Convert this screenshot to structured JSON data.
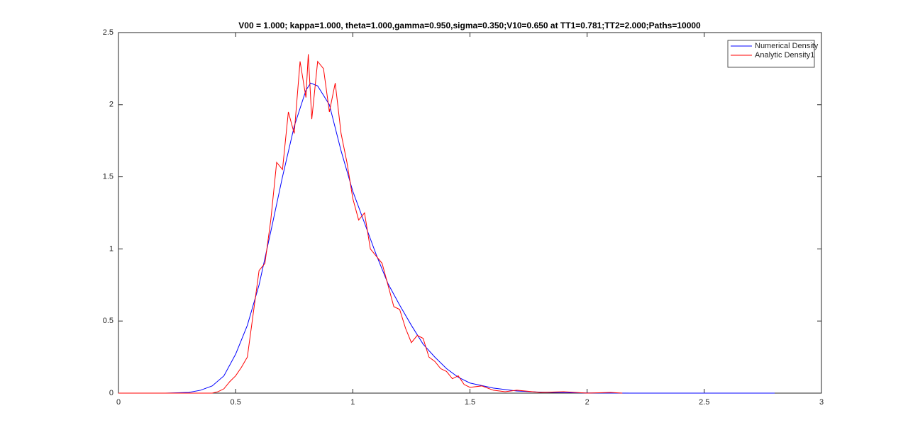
{
  "chart_data": {
    "type": "line",
    "title": "V00 = 1.000; kappa=1.000, theta=1.000,gamma=0.950,sigma=0.350;V10=0.650 at TT1=0.781;TT2=2.000;Paths=10000",
    "xlim": [
      0,
      3
    ],
    "xticks": [
      0,
      0.5,
      1,
      1.5,
      2,
      2.5,
      3
    ],
    "ylim": [
      0,
      2.5
    ],
    "yticks": [
      0,
      0.5,
      1,
      1.5,
      2,
      2.5
    ],
    "legend": "upper-right",
    "series": [
      {
        "name": "Numerical Density",
        "color": "#0000ff",
        "x": [
          0,
          0.1,
          0.2,
          0.3,
          0.35,
          0.4,
          0.45,
          0.5,
          0.55,
          0.6,
          0.65,
          0.7,
          0.75,
          0.8,
          0.82,
          0.85,
          0.9,
          0.95,
          1.0,
          1.05,
          1.1,
          1.15,
          1.2,
          1.25,
          1.3,
          1.35,
          1.4,
          1.45,
          1.5,
          1.6,
          1.7,
          1.8,
          1.9,
          2.0,
          2.2,
          2.5,
          2.8
        ],
        "values": [
          0,
          0,
          0,
          0.005,
          0.02,
          0.05,
          0.12,
          0.27,
          0.47,
          0.75,
          1.12,
          1.5,
          1.85,
          2.1,
          2.15,
          2.13,
          2.0,
          1.68,
          1.4,
          1.18,
          0.96,
          0.76,
          0.61,
          0.47,
          0.34,
          0.25,
          0.17,
          0.11,
          0.07,
          0.035,
          0.015,
          0.007,
          0.003,
          0.001,
          0,
          0,
          0
        ]
      },
      {
        "name": "Analytic Density1",
        "color": "#ff0000",
        "x": [
          0,
          0.4,
          0.425,
          0.45,
          0.475,
          0.5,
          0.525,
          0.55,
          0.575,
          0.6,
          0.625,
          0.65,
          0.675,
          0.7,
          0.725,
          0.75,
          0.775,
          0.8,
          0.81,
          0.825,
          0.85,
          0.875,
          0.9,
          0.925,
          0.95,
          0.975,
          1.0,
          1.025,
          1.05,
          1.075,
          1.1,
          1.125,
          1.15,
          1.175,
          1.2,
          1.225,
          1.25,
          1.275,
          1.3,
          1.325,
          1.35,
          1.375,
          1.4,
          1.425,
          1.45,
          1.475,
          1.5,
          1.55,
          1.6,
          1.65,
          1.7,
          1.8,
          1.9,
          2.0,
          2.1,
          2.15
        ],
        "values": [
          0,
          0,
          0.01,
          0.03,
          0.08,
          0.12,
          0.18,
          0.25,
          0.55,
          0.85,
          0.9,
          1.2,
          1.6,
          1.55,
          1.95,
          1.8,
          2.3,
          2.05,
          2.35,
          1.9,
          2.3,
          2.25,
          1.95,
          2.15,
          1.8,
          1.6,
          1.35,
          1.2,
          1.25,
          1.0,
          0.95,
          0.9,
          0.75,
          0.6,
          0.58,
          0.45,
          0.35,
          0.4,
          0.38,
          0.25,
          0.22,
          0.17,
          0.15,
          0.1,
          0.12,
          0.06,
          0.04,
          0.05,
          0.02,
          0.01,
          0.02,
          0.005,
          0.01,
          0,
          0.005,
          0
        ]
      }
    ]
  }
}
